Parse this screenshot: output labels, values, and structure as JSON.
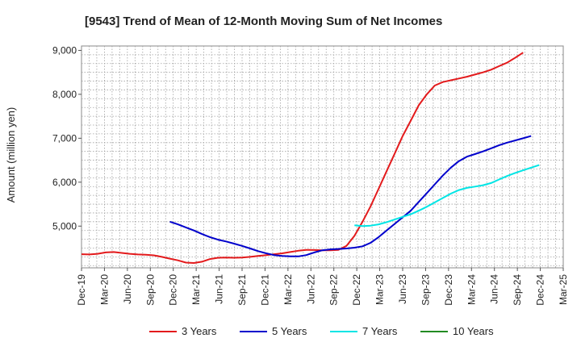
{
  "chart_data": {
    "type": "line",
    "title": "[9543]  Trend of Mean of 12-Month Moving Sum of Net Incomes",
    "ylabel": "Amount (million yen)",
    "xlabel": "",
    "x_tick_labels": [
      "Dec-19",
      "Mar-20",
      "Jun-20",
      "Sep-20",
      "Dec-20",
      "Mar-21",
      "Jun-21",
      "Sep-21",
      "Dec-21",
      "Mar-22",
      "Jun-22",
      "Sep-22",
      "Dec-22",
      "Mar-23",
      "Jun-23",
      "Sep-23",
      "Dec-23",
      "Mar-24",
      "Jun-24",
      "Sep-24",
      "Dec-24",
      "Mar-25"
    ],
    "y_tick_labels": [
      "5,000",
      "6,000",
      "7,000",
      "8,000",
      "9,000"
    ],
    "y_ticks": [
      5000,
      6000,
      7000,
      8000,
      9000
    ],
    "ylim": [
      4050,
      9100
    ],
    "grid": true,
    "legend_position": "bottom",
    "series": [
      {
        "name": "3 Years",
        "color": "#e31a1c",
        "x": [
          0,
          1,
          2,
          3,
          4,
          5,
          6,
          7,
          8,
          9,
          10,
          11,
          12,
          13,
          14,
          15,
          16,
          17,
          18,
          19,
          20,
          21,
          22,
          23,
          24,
          25,
          26,
          27,
          28,
          29,
          30,
          31,
          32,
          33,
          34,
          35,
          36,
          37,
          38,
          39,
          40,
          41,
          42,
          43,
          44,
          45,
          46,
          47,
          48,
          49,
          50,
          51,
          52,
          53,
          54,
          55,
          56,
          57,
          58,
          59,
          60
        ],
        "values": [
          4360,
          4355,
          4370,
          4400,
          4410,
          4390,
          4370,
          4355,
          4350,
          4335,
          4300,
          4260,
          4220,
          4170,
          4160,
          4190,
          4250,
          4280,
          4285,
          4280,
          4285,
          4300,
          4320,
          4340,
          4360,
          4380,
          4410,
          4440,
          4460,
          4455,
          4450,
          4450,
          4460,
          4550,
          4780,
          5100,
          5450,
          5850,
          6250,
          6650,
          7050,
          7400,
          7750,
          8000,
          8200,
          8280,
          8320,
          8360,
          8400,
          8450,
          8500,
          8560,
          8640,
          8720,
          8830,
          8950,
          null,
          null,
          null,
          null,
          null
        ]
      },
      {
        "name": "5 Years",
        "color": "#0000cc",
        "x": [
          11,
          12,
          13,
          14,
          15,
          16,
          17,
          18,
          19,
          20,
          21,
          22,
          23,
          24,
          25,
          26,
          27,
          28,
          29,
          30,
          31,
          32,
          33,
          34,
          35,
          36,
          37,
          38,
          39,
          40,
          41,
          42,
          43,
          44,
          45,
          46,
          47,
          48,
          49,
          50,
          51,
          52,
          53,
          54,
          55,
          56
        ],
        "values": [
          5100,
          5040,
          4970,
          4900,
          4820,
          4750,
          4690,
          4650,
          4600,
          4550,
          4490,
          4430,
          4380,
          4340,
          4320,
          4310,
          4310,
          4340,
          4400,
          4450,
          4470,
          4480,
          4490,
          4510,
          4540,
          4620,
          4750,
          4900,
          5050,
          5200,
          5350,
          5550,
          5750,
          5950,
          6150,
          6330,
          6480,
          6580,
          6640,
          6700,
          6770,
          6840,
          6900,
          6950,
          7000,
          7050
        ]
      },
      {
        "name": "7 Years",
        "color": "#00e5e5",
        "x": [
          34,
          35,
          36,
          37,
          38,
          39,
          40,
          41,
          42,
          43,
          44,
          45,
          46,
          47,
          48,
          49,
          50,
          51,
          52,
          53,
          54,
          55,
          56,
          57,
          58,
          59,
          60
        ],
        "values": [
          5020,
          5000,
          5010,
          5040,
          5090,
          5150,
          5210,
          5270,
          5350,
          5440,
          5540,
          5640,
          5740,
          5820,
          5870,
          5900,
          5930,
          5980,
          6060,
          6140,
          6210,
          6270,
          6330,
          6390,
          null,
          null,
          null
        ]
      },
      {
        "name": "10 Years",
        "color": "#228b22",
        "x": [],
        "values": []
      }
    ]
  }
}
